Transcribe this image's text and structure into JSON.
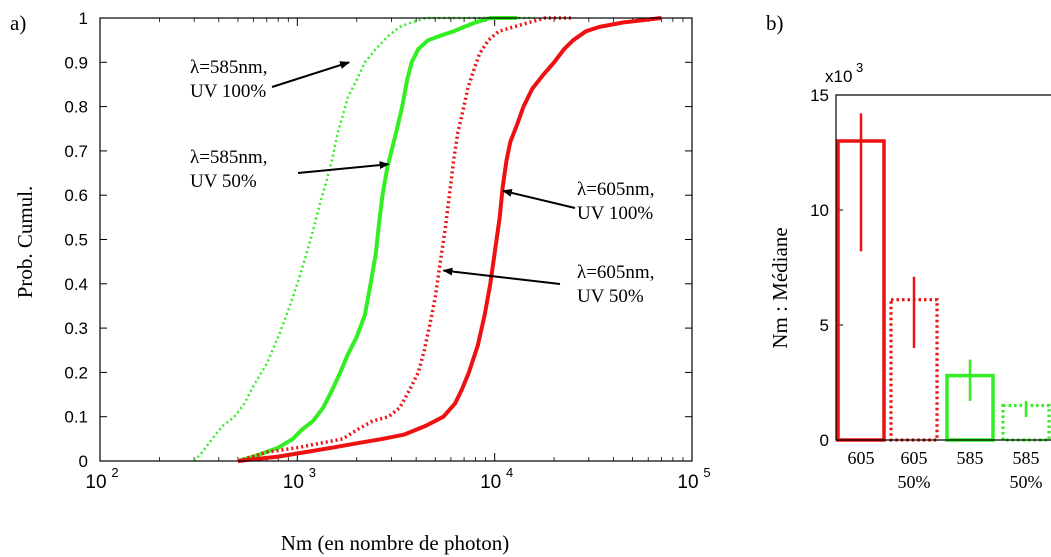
{
  "chart_data": [
    {
      "panel_label": "a)",
      "type": "line",
      "xscale": "log",
      "xlim": [
        100,
        100000
      ],
      "ylim": [
        0,
        1
      ],
      "xlabel": "Nm (en nombre de photon)",
      "ylabel": "Prob. Cumul.",
      "x_ticks": [
        {
          "value": 100,
          "base": "10",
          "exp": "2"
        },
        {
          "value": 1000,
          "base": "10",
          "exp": "3"
        },
        {
          "value": 10000,
          "base": "10",
          "exp": "4"
        },
        {
          "value": 100000,
          "base": "10",
          "exp": "5"
        }
      ],
      "y_ticks": [
        "0",
        "0.1",
        "0.2",
        "0.3",
        "0.4",
        "0.5",
        "0.6",
        "0.7",
        "0.8",
        "0.9",
        "1"
      ],
      "grid": false,
      "series": [
        {
          "color": "#33ee22",
          "style": "dotted",
          "width": 2.5,
          "points": [
            [
              300,
              0.0
            ],
            [
              330,
              0.02
            ],
            [
              370,
              0.05
            ],
            [
              420,
              0.08
            ],
            [
              480,
              0.1
            ],
            [
              540,
              0.13
            ],
            [
              600,
              0.17
            ],
            [
              700,
              0.22
            ],
            [
              800,
              0.28
            ],
            [
              900,
              0.34
            ],
            [
              1000,
              0.4
            ],
            [
              1100,
              0.46
            ],
            [
              1200,
              0.52
            ],
            [
              1300,
              0.58
            ],
            [
              1400,
              0.63
            ],
            [
              1500,
              0.68
            ],
            [
              1600,
              0.74
            ],
            [
              1700,
              0.78
            ],
            [
              1800,
              0.82
            ],
            [
              2000,
              0.86
            ],
            [
              2200,
              0.9
            ],
            [
              2500,
              0.93
            ],
            [
              2900,
              0.96
            ],
            [
              3300,
              0.98
            ],
            [
              3800,
              0.99
            ],
            [
              4500,
              1.0
            ],
            [
              16000,
              1.0
            ]
          ]
        },
        {
          "color": "#33ee22",
          "style": "solid",
          "width": 4,
          "points": [
            [
              500,
              0.0
            ],
            [
              600,
              0.01
            ],
            [
              800,
              0.03
            ],
            [
              950,
              0.05
            ],
            [
              1050,
              0.07
            ],
            [
              1200,
              0.09
            ],
            [
              1350,
              0.12
            ],
            [
              1500,
              0.16
            ],
            [
              1650,
              0.2
            ],
            [
              1800,
              0.24
            ],
            [
              2000,
              0.28
            ],
            [
              2200,
              0.33
            ],
            [
              2350,
              0.4
            ],
            [
              2500,
              0.47
            ],
            [
              2600,
              0.54
            ],
            [
              2700,
              0.6
            ],
            [
              2850,
              0.66
            ],
            [
              3000,
              0.7
            ],
            [
              3200,
              0.75
            ],
            [
              3400,
              0.8
            ],
            [
              3600,
              0.86
            ],
            [
              3800,
              0.9
            ],
            [
              4100,
              0.93
            ],
            [
              4600,
              0.95
            ],
            [
              5300,
              0.96
            ],
            [
              6200,
              0.97
            ],
            [
              7000,
              0.98
            ],
            [
              8000,
              0.99
            ],
            [
              9500,
              1.0
            ],
            [
              13000,
              1.0
            ]
          ]
        },
        {
          "color": "#ee1111",
          "style": "dotted",
          "width": 3.5,
          "points": [
            [
              500,
              0.0
            ],
            [
              700,
              0.02
            ],
            [
              1000,
              0.03
            ],
            [
              1300,
              0.04
            ],
            [
              1700,
              0.05
            ],
            [
              2000,
              0.07
            ],
            [
              2400,
              0.09
            ],
            [
              2900,
              0.1
            ],
            [
              3300,
              0.12
            ],
            [
              3700,
              0.16
            ],
            [
              4100,
              0.2
            ],
            [
              4400,
              0.25
            ],
            [
              4700,
              0.31
            ],
            [
              5000,
              0.37
            ],
            [
              5300,
              0.45
            ],
            [
              5600,
              0.52
            ],
            [
              5900,
              0.6
            ],
            [
              6200,
              0.68
            ],
            [
              6500,
              0.74
            ],
            [
              6900,
              0.79
            ],
            [
              7300,
              0.84
            ],
            [
              7800,
              0.88
            ],
            [
              8400,
              0.92
            ],
            [
              9300,
              0.95
            ],
            [
              10500,
              0.97
            ],
            [
              12500,
              0.98
            ],
            [
              15000,
              0.99
            ],
            [
              18000,
              1.0
            ],
            [
              25000,
              1.0
            ]
          ]
        },
        {
          "color": "#ee1111",
          "style": "solid",
          "width": 4,
          "points": [
            [
              500,
              0.0
            ],
            [
              800,
              0.01
            ],
            [
              1100,
              0.02
            ],
            [
              1500,
              0.03
            ],
            [
              2000,
              0.04
            ],
            [
              2700,
              0.05
            ],
            [
              3500,
              0.06
            ],
            [
              4500,
              0.08
            ],
            [
              5500,
              0.1
            ],
            [
              6300,
              0.13
            ],
            [
              6800,
              0.16
            ],
            [
              7400,
              0.2
            ],
            [
              8200,
              0.26
            ],
            [
              8900,
              0.33
            ],
            [
              9500,
              0.4
            ],
            [
              10000,
              0.47
            ],
            [
              10600,
              0.55
            ],
            [
              11000,
              0.62
            ],
            [
              11500,
              0.68
            ],
            [
              12000,
              0.72
            ],
            [
              13000,
              0.76
            ],
            [
              14000,
              0.8
            ],
            [
              15500,
              0.84
            ],
            [
              17500,
              0.87
            ],
            [
              20000,
              0.9
            ],
            [
              22500,
              0.93
            ],
            [
              25000,
              0.95
            ],
            [
              29000,
              0.97
            ],
            [
              34000,
              0.98
            ],
            [
              45000,
              0.99
            ],
            [
              70000,
              1.0
            ]
          ]
        }
      ],
      "annotations": [
        {
          "text": [
            "λ=585nm,",
            "UV 100%"
          ],
          "arrow_to": [
            1830,
            0.9
          ]
        },
        {
          "text": [
            "λ=585nm,",
            "UV 50%"
          ],
          "arrow_to": [
            2900,
            0.67
          ]
        },
        {
          "text": [
            "λ=605nm,",
            "UV 100%"
          ],
          "arrow_to": [
            11000,
            0.61
          ]
        },
        {
          "text": [
            "λ=605nm,",
            "UV 50%"
          ],
          "arrow_to": [
            5500,
            0.43
          ]
        }
      ]
    },
    {
      "panel_label": "b)",
      "type": "bar",
      "ylabel": "Nm : Médiane",
      "yscale_label": "x10",
      "yscale_exp": "3",
      "ylim": [
        0,
        15
      ],
      "y_ticks": [
        "0",
        "5",
        "10",
        "15"
      ],
      "categories": [
        [
          "605",
          ""
        ],
        [
          "605",
          "50%"
        ],
        [
          "585",
          ""
        ],
        [
          "585",
          "50%"
        ]
      ],
      "values": [
        13.0,
        6.1,
        2.8,
        1.5
      ],
      "error_low": [
        8.2,
        4.0,
        1.7,
        1.0
      ],
      "error_high": [
        14.2,
        7.1,
        3.5,
        1.7
      ],
      "colors": [
        "#ee1111",
        "#ee1111",
        "#33ee22",
        "#33ee22"
      ],
      "styles": [
        "solid",
        "dotted",
        "solid",
        "dotted"
      ]
    }
  ]
}
